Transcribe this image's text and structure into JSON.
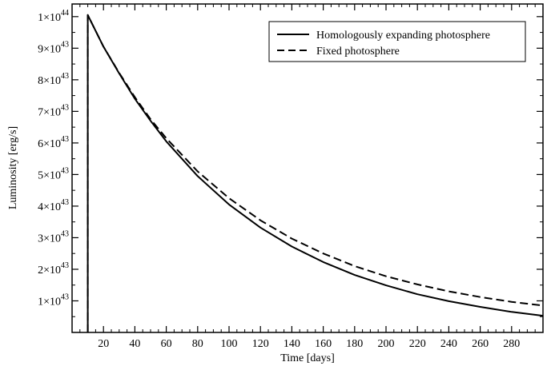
{
  "chart_data": {
    "type": "line",
    "title": "",
    "xlabel": "Time [days]",
    "ylabel": "Luminosity [erg/s]",
    "xlim": [
      0,
      300
    ],
    "ylim": [
      0,
      1.04e+44
    ],
    "x_ticks": [
      20,
      40,
      60,
      80,
      100,
      120,
      140,
      160,
      180,
      200,
      220,
      240,
      260,
      280
    ],
    "x_tick_labels": [
      "20",
      "40",
      "60",
      "80",
      "100",
      "120",
      "140",
      "160",
      "180",
      "200",
      "220",
      "240",
      "260",
      "280"
    ],
    "y_ticks": [
      {
        "value": 1e+43,
        "mantissa": "1×10",
        "exp": "43"
      },
      {
        "value": 2e+43,
        "mantissa": "2×10",
        "exp": "43"
      },
      {
        "value": 3e+43,
        "mantissa": "3×10",
        "exp": "43"
      },
      {
        "value": 4e+43,
        "mantissa": "4×10",
        "exp": "43"
      },
      {
        "value": 5e+43,
        "mantissa": "5×10",
        "exp": "43"
      },
      {
        "value": 6e+43,
        "mantissa": "6×10",
        "exp": "43"
      },
      {
        "value": 7e+43,
        "mantissa": "7×10",
        "exp": "43"
      },
      {
        "value": 8e+43,
        "mantissa": "8×10",
        "exp": "43"
      },
      {
        "value": 9e+43,
        "mantissa": "9×10",
        "exp": "43"
      },
      {
        "value": 1e+44,
        "mantissa": "1×10",
        "exp": "44"
      }
    ],
    "legend_placement": "top-right",
    "grid": false,
    "series": [
      {
        "name": "Homologously expanding photosphere",
        "style": "solid",
        "x": [
          10,
          10,
          20,
          30,
          40,
          50,
          60,
          80,
          100,
          120,
          140,
          160,
          180,
          200,
          220,
          240,
          260,
          280,
          300
        ],
        "y": [
          0,
          1.005e+44,
          9.05e+43,
          8.2e+43,
          7.4e+43,
          6.7e+43,
          6.05e+43,
          4.95e+43,
          4.05e+43,
          3.32e+43,
          2.72e+43,
          2.23e+43,
          1.82e+43,
          1.49e+43,
          1.21e+43,
          9.9e+42,
          8.1e+42,
          6.5e+42,
          5.3e+42
        ]
      },
      {
        "name": "Fixed photosphere",
        "style": "dashed",
        "x": [
          10,
          10,
          20,
          30,
          40,
          50,
          60,
          80,
          100,
          120,
          140,
          160,
          180,
          200,
          220,
          240,
          260,
          280,
          300
        ],
        "y": [
          0,
          1.005e+44,
          9.05e+43,
          8.22e+43,
          7.45e+43,
          6.75e+43,
          6.15e+43,
          5.1e+43,
          4.25e+43,
          3.55e+43,
          2.97e+43,
          2.5e+43,
          2.1e+43,
          1.78e+43,
          1.52e+43,
          1.3e+43,
          1.12e+43,
          9.7e+42,
          8.5e+42
        ]
      }
    ]
  }
}
